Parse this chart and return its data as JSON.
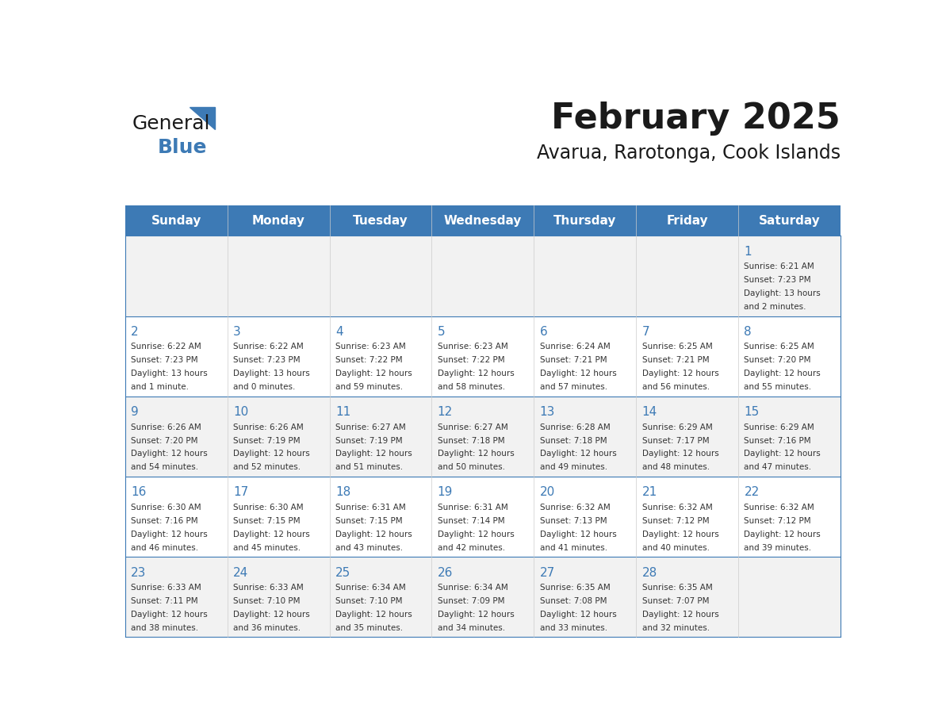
{
  "title": "February 2025",
  "subtitle": "Avarua, Rarotonga, Cook Islands",
  "days_of_week": [
    "Sunday",
    "Monday",
    "Tuesday",
    "Wednesday",
    "Thursday",
    "Friday",
    "Saturday"
  ],
  "header_bg": "#3d7ab5",
  "header_text": "#ffffff",
  "row_bg_odd": "#f2f2f2",
  "row_bg_even": "#ffffff",
  "border_color": "#3d7ab5",
  "text_color": "#333333",
  "day_num_color": "#3d7ab5",
  "calendar_data": [
    [
      null,
      null,
      null,
      null,
      null,
      null,
      {
        "day": 1,
        "sunrise": "6:21 AM",
        "sunset": "7:23 PM",
        "daylight": "13 hours and 2 minutes."
      }
    ],
    [
      {
        "day": 2,
        "sunrise": "6:22 AM",
        "sunset": "7:23 PM",
        "daylight": "13 hours and 1 minute."
      },
      {
        "day": 3,
        "sunrise": "6:22 AM",
        "sunset": "7:23 PM",
        "daylight": "13 hours and 0 minutes."
      },
      {
        "day": 4,
        "sunrise": "6:23 AM",
        "sunset": "7:22 PM",
        "daylight": "12 hours and 59 minutes."
      },
      {
        "day": 5,
        "sunrise": "6:23 AM",
        "sunset": "7:22 PM",
        "daylight": "12 hours and 58 minutes."
      },
      {
        "day": 6,
        "sunrise": "6:24 AM",
        "sunset": "7:21 PM",
        "daylight": "12 hours and 57 minutes."
      },
      {
        "day": 7,
        "sunrise": "6:25 AM",
        "sunset": "7:21 PM",
        "daylight": "12 hours and 56 minutes."
      },
      {
        "day": 8,
        "sunrise": "6:25 AM",
        "sunset": "7:20 PM",
        "daylight": "12 hours and 55 minutes."
      }
    ],
    [
      {
        "day": 9,
        "sunrise": "6:26 AM",
        "sunset": "7:20 PM",
        "daylight": "12 hours and 54 minutes."
      },
      {
        "day": 10,
        "sunrise": "6:26 AM",
        "sunset": "7:19 PM",
        "daylight": "12 hours and 52 minutes."
      },
      {
        "day": 11,
        "sunrise": "6:27 AM",
        "sunset": "7:19 PM",
        "daylight": "12 hours and 51 minutes."
      },
      {
        "day": 12,
        "sunrise": "6:27 AM",
        "sunset": "7:18 PM",
        "daylight": "12 hours and 50 minutes."
      },
      {
        "day": 13,
        "sunrise": "6:28 AM",
        "sunset": "7:18 PM",
        "daylight": "12 hours and 49 minutes."
      },
      {
        "day": 14,
        "sunrise": "6:29 AM",
        "sunset": "7:17 PM",
        "daylight": "12 hours and 48 minutes."
      },
      {
        "day": 15,
        "sunrise": "6:29 AM",
        "sunset": "7:16 PM",
        "daylight": "12 hours and 47 minutes."
      }
    ],
    [
      {
        "day": 16,
        "sunrise": "6:30 AM",
        "sunset": "7:16 PM",
        "daylight": "12 hours and 46 minutes."
      },
      {
        "day": 17,
        "sunrise": "6:30 AM",
        "sunset": "7:15 PM",
        "daylight": "12 hours and 45 minutes."
      },
      {
        "day": 18,
        "sunrise": "6:31 AM",
        "sunset": "7:15 PM",
        "daylight": "12 hours and 43 minutes."
      },
      {
        "day": 19,
        "sunrise": "6:31 AM",
        "sunset": "7:14 PM",
        "daylight": "12 hours and 42 minutes."
      },
      {
        "day": 20,
        "sunrise": "6:32 AM",
        "sunset": "7:13 PM",
        "daylight": "12 hours and 41 minutes."
      },
      {
        "day": 21,
        "sunrise": "6:32 AM",
        "sunset": "7:12 PM",
        "daylight": "12 hours and 40 minutes."
      },
      {
        "day": 22,
        "sunrise": "6:32 AM",
        "sunset": "7:12 PM",
        "daylight": "12 hours and 39 minutes."
      }
    ],
    [
      {
        "day": 23,
        "sunrise": "6:33 AM",
        "sunset": "7:11 PM",
        "daylight": "12 hours and 38 minutes."
      },
      {
        "day": 24,
        "sunrise": "6:33 AM",
        "sunset": "7:10 PM",
        "daylight": "12 hours and 36 minutes."
      },
      {
        "day": 25,
        "sunrise": "6:34 AM",
        "sunset": "7:10 PM",
        "daylight": "12 hours and 35 minutes."
      },
      {
        "day": 26,
        "sunrise": "6:34 AM",
        "sunset": "7:09 PM",
        "daylight": "12 hours and 34 minutes."
      },
      {
        "day": 27,
        "sunrise": "6:35 AM",
        "sunset": "7:08 PM",
        "daylight": "12 hours and 33 minutes."
      },
      {
        "day": 28,
        "sunrise": "6:35 AM",
        "sunset": "7:07 PM",
        "daylight": "12 hours and 32 minutes."
      },
      null
    ]
  ],
  "logo_text_general": "General",
  "logo_text_blue": "Blue",
  "logo_color_general": "#1a1a1a",
  "logo_color_blue": "#3d7ab5"
}
